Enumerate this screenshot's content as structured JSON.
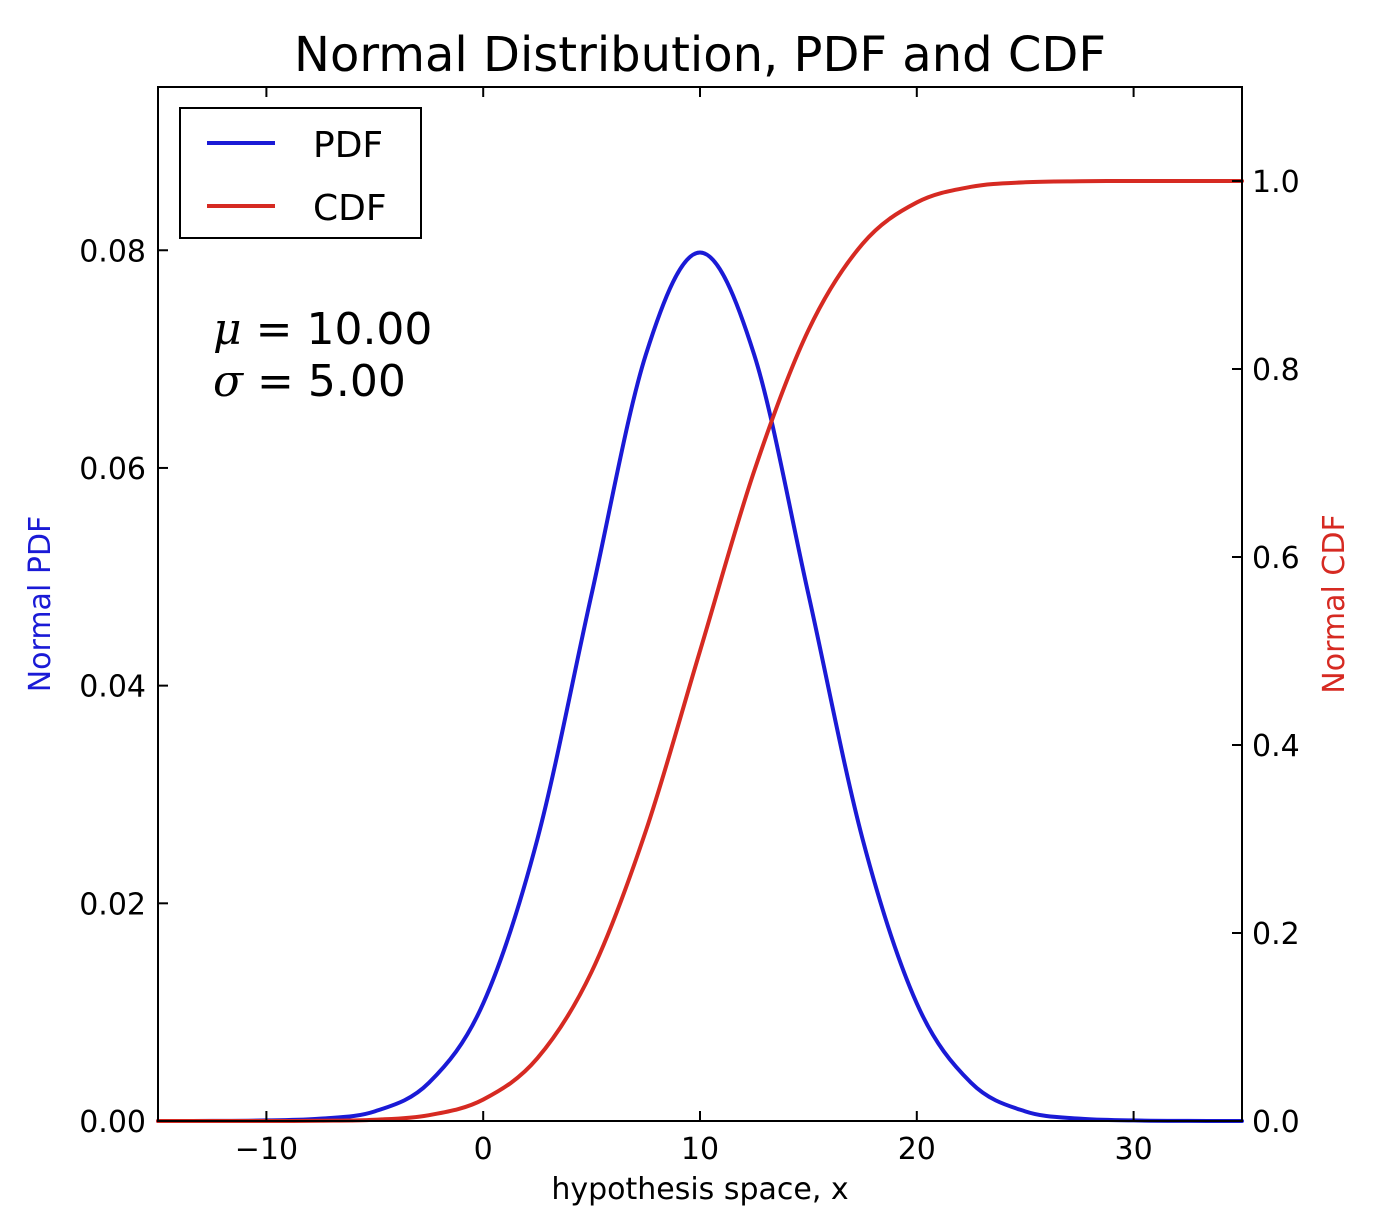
{
  "chart_data": {
    "type": "line",
    "title": "Normal Distribution, PDF and CDF",
    "xlabel": "hypothesis space, x",
    "ylabel_left": "Normal PDF",
    "ylabel_right": "Normal CDF",
    "xlim": [
      -15,
      35
    ],
    "ylim_left": [
      0,
      0.095
    ],
    "ylim_right": [
      0,
      1.1
    ],
    "x_ticks": [
      -10,
      0,
      10,
      20,
      30
    ],
    "x_tick_labels": [
      "−10",
      "0",
      "10",
      "20",
      "30"
    ],
    "y_left_ticks": [
      0.0,
      0.02,
      0.04,
      0.06,
      0.08
    ],
    "y_left_tick_labels": [
      "0.00",
      "0.02",
      "0.04",
      "0.06",
      "0.08"
    ],
    "y_right_ticks": [
      0.0,
      0.2,
      0.4,
      0.6,
      0.8,
      1.0
    ],
    "y_right_tick_labels": [
      "0.0",
      "0.2",
      "0.4",
      "0.6",
      "0.8",
      "1.0"
    ],
    "grid": false,
    "legend_placement": "top-left",
    "x": [
      -15,
      -12.5,
      -10,
      -7.5,
      -5,
      -2.5,
      0,
      2.5,
      5,
      7.5,
      10,
      12.5,
      15,
      17.5,
      20,
      22.5,
      25,
      27.5,
      30,
      32.5,
      35
    ],
    "series": [
      {
        "name": "PDF",
        "axis": "left",
        "color": "#1a1ad6",
        "values": [
          1.4e-06,
          1.01e-05,
          5.35e-05,
          0.000217,
          0.000886,
          0.00352,
          0.0108,
          0.0259,
          0.0484,
          0.0704,
          0.0798,
          0.0704,
          0.0484,
          0.0259,
          0.0108,
          0.00352,
          0.000886,
          0.000217,
          5.35e-05,
          1.01e-05,
          1.4e-06
        ]
      },
      {
        "name": "CDF",
        "axis": "right",
        "color": "#d62a22",
        "values": [
          3e-07,
          3.4e-06,
          3.17e-05,
          0.000233,
          0.00135,
          0.00621,
          0.0228,
          0.0668,
          0.1587,
          0.3085,
          0.5,
          0.6915,
          0.8413,
          0.9332,
          0.9772,
          0.9938,
          0.99865,
          0.99977,
          0.99997,
          0.999997,
          0.9999997
        ]
      }
    ]
  },
  "annotation": {
    "mu_symbol": "μ",
    "mu_text": " = 10.00",
    "sigma_symbol": "σ",
    "sigma_text": " = 5.00"
  }
}
